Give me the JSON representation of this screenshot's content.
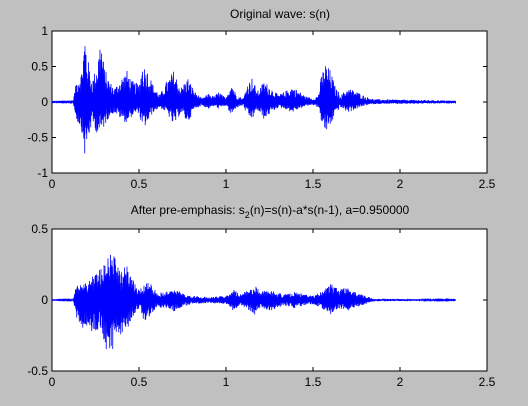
{
  "figure": {
    "background": "#c0c0c0"
  },
  "chart_data": [
    {
      "type": "line",
      "title": "Original wave: s(n)",
      "xlabel": "",
      "ylabel": "",
      "xlim": [
        0,
        2.5
      ],
      "ylim": [
        -1,
        1
      ],
      "xticks": [
        0,
        0.5,
        1,
        1.5,
        2,
        2.5
      ],
      "xtick_labels": [
        "0",
        "0.5",
        "1",
        "1.5",
        "2",
        "2.5"
      ],
      "yticks": [
        1,
        0.5,
        0,
        -0.5,
        -1
      ],
      "ytick_labels": [
        "1",
        "0.5",
        "0",
        "-0.5",
        "-1"
      ],
      "grid": false,
      "series": [
        {
          "color": "#0000ff",
          "signal_end": 2.32,
          "envelope": [
            [
              0.0,
              0.005,
              0.005
            ],
            [
              0.12,
              0.01,
              0.01
            ],
            [
              0.14,
              0.3,
              0.25
            ],
            [
              0.17,
              0.45,
              0.4
            ],
            [
              0.19,
              1.0,
              0.8
            ],
            [
              0.2,
              0.7,
              0.65
            ],
            [
              0.23,
              0.3,
              0.3
            ],
            [
              0.26,
              0.55,
              0.45
            ],
            [
              0.28,
              0.95,
              0.45
            ],
            [
              0.3,
              0.5,
              0.35
            ],
            [
              0.33,
              0.3,
              0.2
            ],
            [
              0.36,
              0.2,
              0.15
            ],
            [
              0.4,
              0.35,
              0.25
            ],
            [
              0.43,
              0.45,
              0.3
            ],
            [
              0.46,
              0.3,
              0.2
            ],
            [
              0.5,
              0.25,
              0.15
            ],
            [
              0.52,
              0.55,
              0.4
            ],
            [
              0.55,
              0.45,
              0.3
            ],
            [
              0.58,
              0.25,
              0.15
            ],
            [
              0.62,
              0.1,
              0.08
            ],
            [
              0.66,
              0.3,
              0.15
            ],
            [
              0.7,
              0.45,
              0.35
            ],
            [
              0.74,
              0.2,
              0.15
            ],
            [
              0.78,
              0.35,
              0.3
            ],
            [
              0.82,
              0.15,
              0.1
            ],
            [
              0.86,
              0.05,
              0.05
            ],
            [
              0.9,
              0.12,
              0.1
            ],
            [
              0.93,
              0.08,
              0.06
            ],
            [
              0.96,
              0.15,
              0.1
            ],
            [
              1.0,
              0.05,
              0.05
            ],
            [
              1.03,
              0.3,
              0.2
            ],
            [
              1.06,
              0.1,
              0.08
            ],
            [
              1.1,
              0.05,
              0.05
            ],
            [
              1.12,
              0.25,
              0.2
            ],
            [
              1.15,
              0.35,
              0.25
            ],
            [
              1.18,
              0.15,
              0.12
            ],
            [
              1.22,
              0.3,
              0.25
            ],
            [
              1.26,
              0.2,
              0.15
            ],
            [
              1.3,
              0.1,
              0.08
            ],
            [
              1.34,
              0.15,
              0.1
            ],
            [
              1.38,
              0.22,
              0.15
            ],
            [
              1.42,
              0.15,
              0.1
            ],
            [
              1.46,
              0.08,
              0.06
            ],
            [
              1.5,
              0.05,
              0.04
            ],
            [
              1.53,
              0.1,
              0.08
            ],
            [
              1.55,
              0.4,
              0.3
            ],
            [
              1.57,
              0.55,
              0.45
            ],
            [
              1.6,
              0.45,
              0.35
            ],
            [
              1.63,
              0.2,
              0.15
            ],
            [
              1.66,
              0.1,
              0.08
            ],
            [
              1.7,
              0.2,
              0.15
            ],
            [
              1.75,
              0.15,
              0.1
            ],
            [
              1.8,
              0.08,
              0.05
            ],
            [
              1.85,
              0.04,
              0.03
            ],
            [
              2.32,
              0.02,
              0.02
            ]
          ]
        }
      ]
    },
    {
      "type": "line",
      "title_parts": {
        "prefix": "After pre-emphasis: s",
        "subscript": "2",
        "suffix": "(n)=s(n)-a*s(n-1), a=0.950000"
      },
      "xlabel": "",
      "ylabel": "",
      "xlim": [
        0,
        2.5
      ],
      "ylim": [
        -0.5,
        0.5
      ],
      "xticks": [
        0,
        0.5,
        1,
        1.5,
        2,
        2.5
      ],
      "xtick_labels": [
        "0",
        "0.5",
        "1",
        "1.5",
        "2",
        "2.5"
      ],
      "yticks": [
        0.5,
        0,
        -0.5
      ],
      "ytick_labels": [
        "0.5",
        "0",
        "-0.5"
      ],
      "grid": false,
      "series": [
        {
          "color": "#0000ff",
          "signal_end": 2.32,
          "envelope": [
            [
              0.0,
              0.002,
              0.002
            ],
            [
              0.12,
              0.005,
              0.005
            ],
            [
              0.14,
              0.1,
              0.12
            ],
            [
              0.17,
              0.15,
              0.2
            ],
            [
              0.2,
              0.12,
              0.18
            ],
            [
              0.24,
              0.2,
              0.25
            ],
            [
              0.28,
              0.22,
              0.2
            ],
            [
              0.31,
              0.3,
              0.35
            ],
            [
              0.34,
              0.42,
              0.4
            ],
            [
              0.37,
              0.25,
              0.22
            ],
            [
              0.4,
              0.2,
              0.25
            ],
            [
              0.43,
              0.3,
              0.22
            ],
            [
              0.46,
              0.15,
              0.12
            ],
            [
              0.5,
              0.08,
              0.06
            ],
            [
              0.53,
              0.12,
              0.15
            ],
            [
              0.56,
              0.15,
              0.12
            ],
            [
              0.6,
              0.05,
              0.05
            ],
            [
              0.65,
              0.06,
              0.06
            ],
            [
              0.7,
              0.08,
              0.08
            ],
            [
              0.75,
              0.05,
              0.05
            ],
            [
              0.8,
              0.03,
              0.03
            ],
            [
              0.9,
              0.02,
              0.02
            ],
            [
              1.0,
              0.03,
              0.03
            ],
            [
              1.04,
              0.08,
              0.08
            ],
            [
              1.08,
              0.04,
              0.04
            ],
            [
              1.13,
              0.07,
              0.07
            ],
            [
              1.16,
              0.11,
              0.11
            ],
            [
              1.2,
              0.06,
              0.06
            ],
            [
              1.25,
              0.08,
              0.08
            ],
            [
              1.3,
              0.05,
              0.05
            ],
            [
              1.35,
              0.04,
              0.04
            ],
            [
              1.4,
              0.06,
              0.06
            ],
            [
              1.45,
              0.04,
              0.04
            ],
            [
              1.5,
              0.03,
              0.03
            ],
            [
              1.55,
              0.06,
              0.06
            ],
            [
              1.6,
              0.12,
              0.1
            ],
            [
              1.65,
              0.08,
              0.07
            ],
            [
              1.7,
              0.1,
              0.08
            ],
            [
              1.75,
              0.05,
              0.05
            ],
            [
              1.8,
              0.03,
              0.03
            ],
            [
              1.85,
              0.01,
              0.01
            ],
            [
              2.32,
              0.003,
              0.003
            ]
          ]
        }
      ]
    }
  ]
}
